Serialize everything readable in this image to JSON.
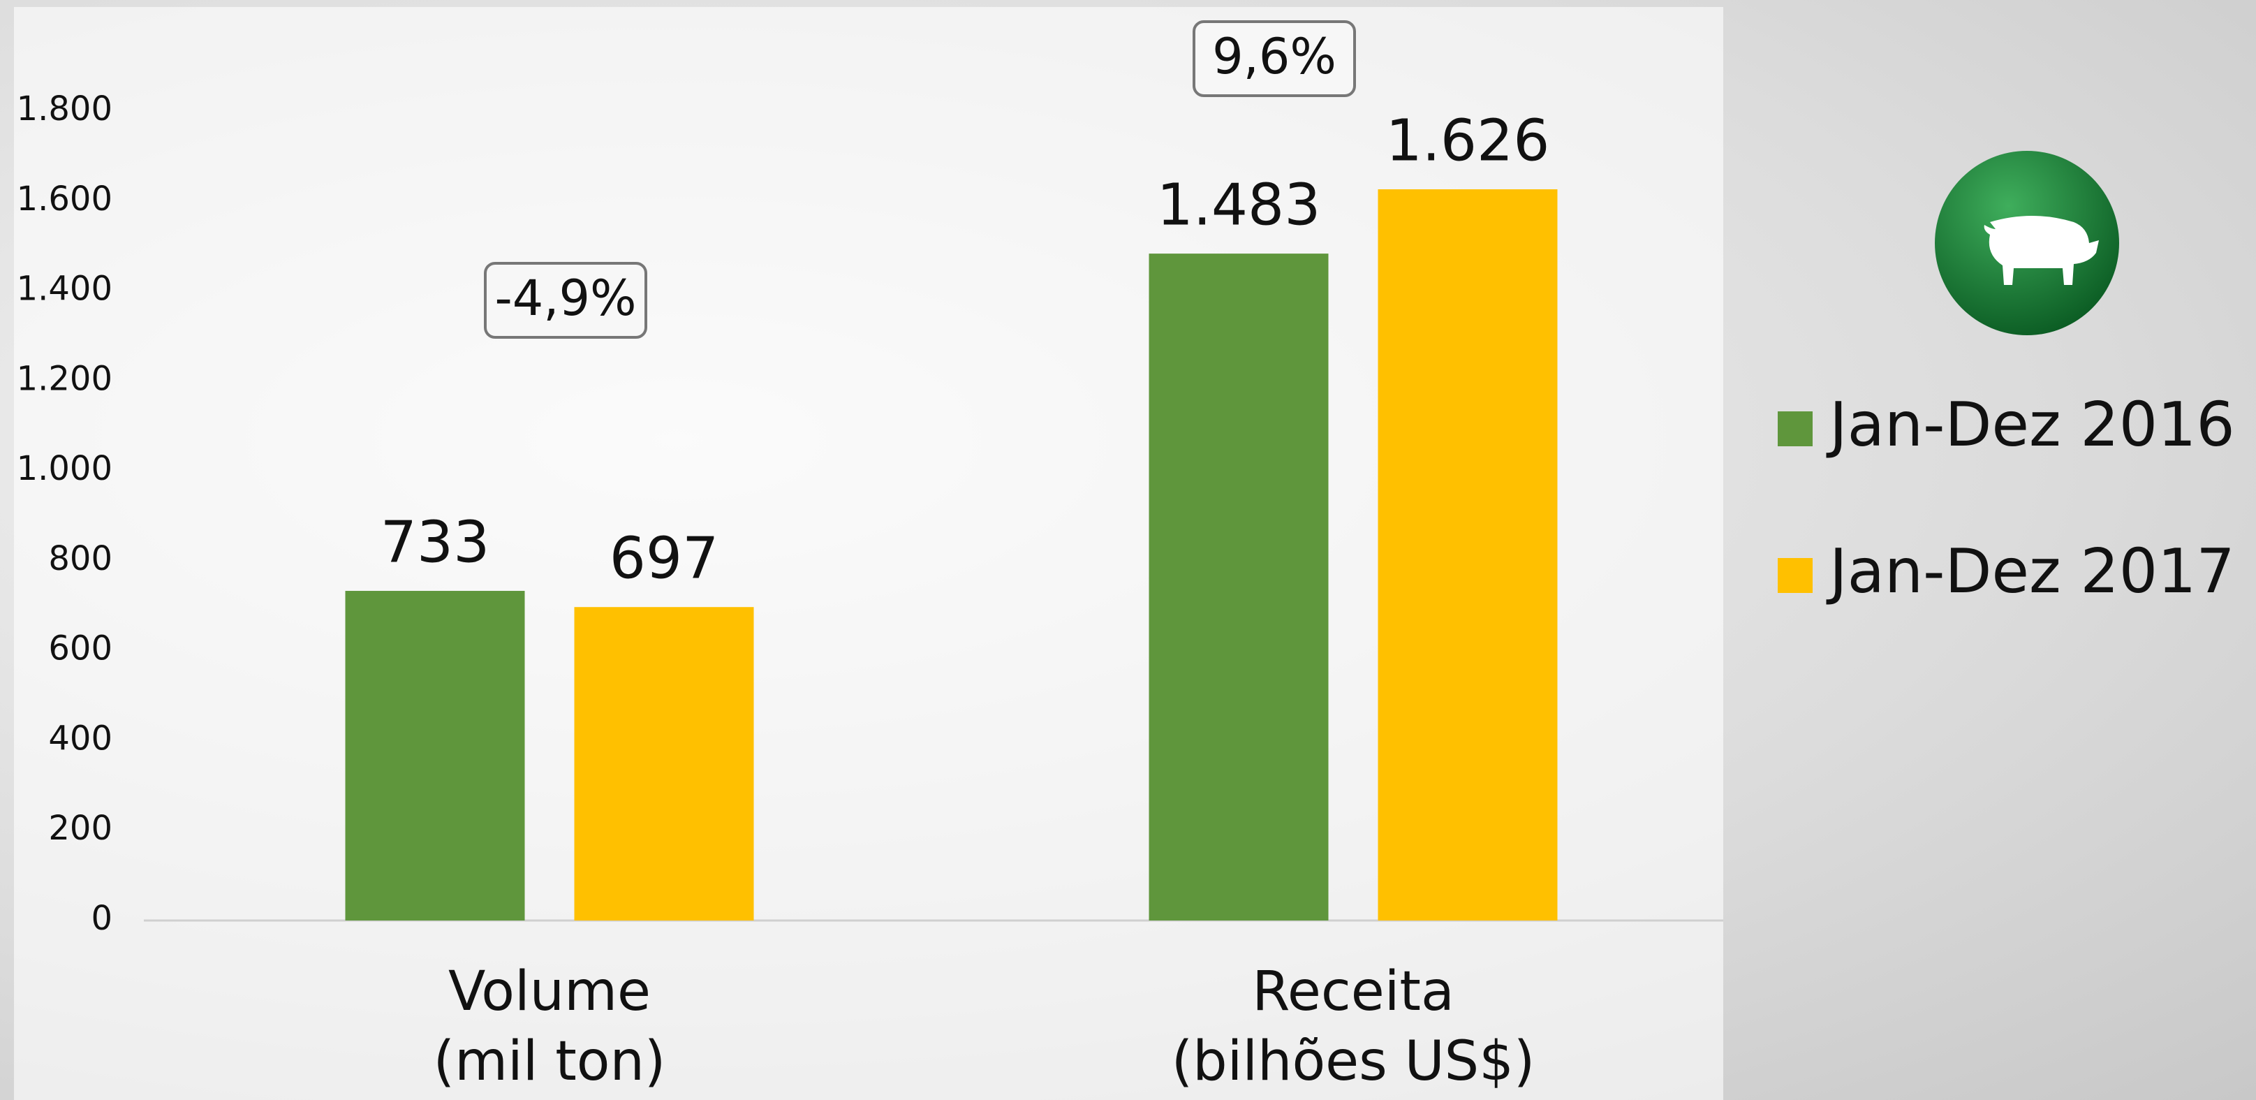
{
  "chart_data": {
    "type": "bar",
    "categories": [
      "Volume\n(mil ton)",
      "Receita\n(bilhões US$)"
    ],
    "series": [
      {
        "name": "Jan-Dez 2016",
        "color": "#5f963c",
        "values": [
          733,
          1483
        ],
        "value_labels": [
          "733",
          "1.483"
        ]
      },
      {
        "name": "Jan-Dez 2017",
        "color": "#ffc000",
        "values": [
          697,
          1626
        ],
        "value_labels": [
          "697",
          "1.626"
        ]
      }
    ],
    "ylim": [
      0,
      1800
    ],
    "yticks": [
      0,
      200,
      400,
      600,
      800,
      {
        "value": 1000,
        "label": "1.000"
      },
      {
        "value": 1200,
        "label": "1.200"
      },
      {
        "value": 1400,
        "label": "1.400"
      },
      {
        "value": 1600,
        "label": "1.600"
      },
      {
        "value": 1800,
        "label": "1.800"
      }
    ],
    "annotations": [
      "-4,9%",
      "9,6%"
    ],
    "legend": "right"
  }
}
